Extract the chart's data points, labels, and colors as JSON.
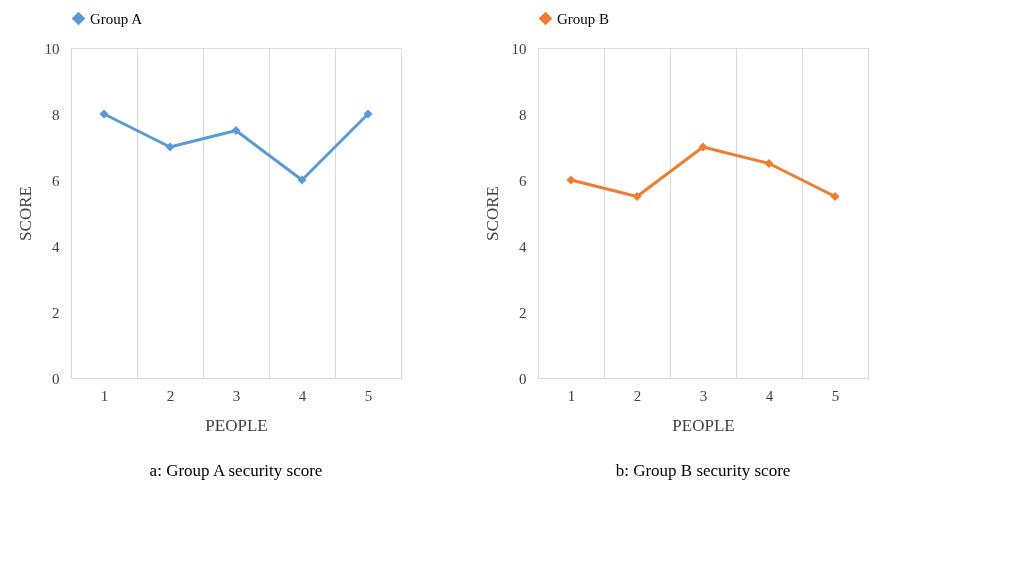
{
  "chart_data": [
    {
      "type": "line",
      "categories": [
        "1",
        "2",
        "3",
        "4",
        "5"
      ],
      "xlabel": "PEOPLE",
      "ylabel": "SCORE",
      "ylim": [
        0,
        10
      ],
      "yticks": [
        0,
        2,
        4,
        6,
        8,
        10
      ],
      "grid": "x",
      "legend": "top",
      "marker": "diamond",
      "line_style": "solid",
      "series": [
        {
          "name": "Group A",
          "color": "#5b9bd5",
          "values": [
            8,
            7,
            7.5,
            6,
            8
          ]
        }
      ],
      "annotations": [
        "a: Group A security score"
      ]
    },
    {
      "type": "line",
      "categories": [
        "1",
        "2",
        "3",
        "4",
        "5"
      ],
      "xlabel": "PEOPLE",
      "ylabel": "SCORE",
      "ylim": [
        0,
        10
      ],
      "yticks": [
        0,
        2,
        4,
        6,
        8,
        10
      ],
      "grid": "x",
      "legend": "top",
      "marker": "diamond",
      "line_style": "solid",
      "series": [
        {
          "name": "Group B",
          "color": "#ed7d31",
          "values": [
            6,
            5.5,
            7,
            6.5,
            5.5
          ]
        }
      ],
      "annotations": [
        "b: Group B security score"
      ]
    }
  ]
}
